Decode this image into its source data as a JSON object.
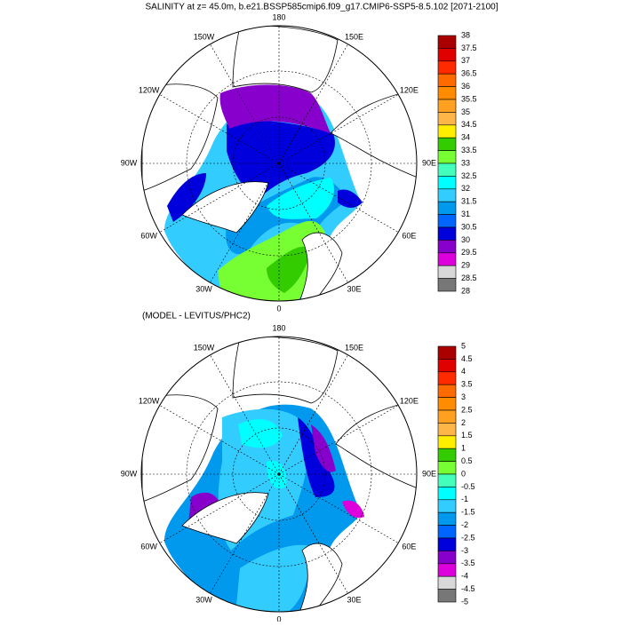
{
  "title": "SALINITY at z=  45.0m, b.e21.BSSP585cmip6.f09_g17.CMIP6-SSP5-8.5.102 [2071-2100]",
  "panels": [
    {
      "lon_labels": [
        "0",
        "30E",
        "60E",
        "90E",
        "120E",
        "150E",
        "180",
        "150W",
        "120W",
        "90W",
        "60W",
        "30W"
      ],
      "colorbar": {
        "labels": [
          "38",
          "37.5",
          "37",
          "36.5",
          "36",
          "35.5",
          "35",
          "34.5",
          "34",
          "33.5",
          "33",
          "32.5",
          "32",
          "31.5",
          "31",
          "30.5",
          "30",
          "29.5",
          "29",
          "28.5",
          "28"
        ],
        "colors": [
          "#aa0000",
          "#e00000",
          "#ff2a00",
          "#ff6a00",
          "#ff8c00",
          "#ffa020",
          "#ffb648",
          "#ffee00",
          "#33cc00",
          "#77ff33",
          "#44ffbb",
          "#00ffff",
          "#33ccff",
          "#0099ee",
          "#0066ff",
          "#0000dd",
          "#8800cc",
          "#dd00dd",
          "#d8d8d8",
          "#777777"
        ]
      }
    },
    {
      "subtitle": "(MODEL - LEVITUS/PHC2)",
      "lon_labels": [
        "0",
        "30E",
        "60E",
        "90E",
        "120E",
        "150E",
        "180",
        "150W",
        "120W",
        "90W",
        "60W",
        "30W"
      ],
      "colorbar": {
        "labels": [
          "5",
          "4.5",
          "4",
          "3.5",
          "3",
          "2.5",
          "2",
          "1.5",
          "1",
          "0.5",
          "0",
          "-0.5",
          "-1",
          "-1.5",
          "-2",
          "-2.5",
          "-3",
          "-3.5",
          "-4",
          "-4.5",
          "-5"
        ],
        "colors": [
          "#aa0000",
          "#e00000",
          "#ff2a00",
          "#ff6a00",
          "#ff8c00",
          "#ffa020",
          "#ffb648",
          "#ffee00",
          "#33cc00",
          "#77ff33",
          "#44ffbb",
          "#00ffff",
          "#33ccff",
          "#0099ee",
          "#0066ff",
          "#0000dd",
          "#8800cc",
          "#dd00dd",
          "#d8d8d8",
          "#777777"
        ]
      }
    }
  ]
}
